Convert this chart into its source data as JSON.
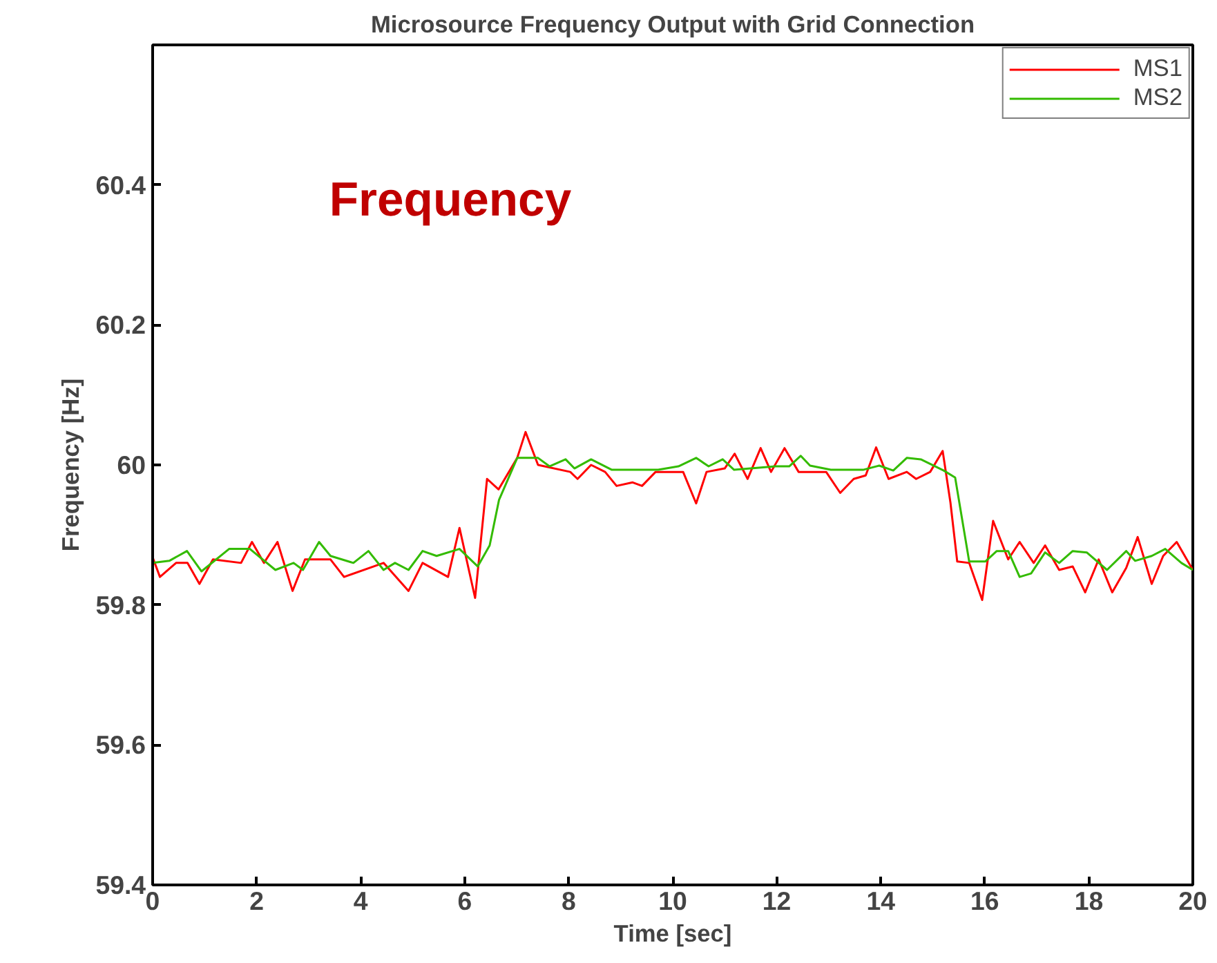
{
  "chart_data": {
    "type": "line",
    "title": "Microsource Frequency Output with Grid Connection",
    "xlabel": "Time [sec]",
    "ylabel": "Frequency [Hz]",
    "annotations": [
      "Frequency"
    ],
    "xlim": [
      0,
      20
    ],
    "ylim": [
      59.4,
      60.6
    ],
    "xticks": [
      0,
      2,
      4,
      6,
      8,
      10,
      12,
      14,
      16,
      18,
      20
    ],
    "yticks": [
      59.4,
      59.6,
      59.8,
      60,
      60.2,
      60.4
    ],
    "grid": false,
    "legend": "top right",
    "marker": "none",
    "line_style": "solid",
    "series": [
      {
        "name": "MS1",
        "color": "#ff0000",
        "x": [
          0,
          0.14,
          0.45,
          0.67,
          0.9,
          1.16,
          1.7,
          1.91,
          2.14,
          2.4,
          2.69,
          2.93,
          3.42,
          3.68,
          4.44,
          4.92,
          5.19,
          5.68,
          5.9,
          6.2,
          6.43,
          6.65,
          7.01,
          7.17,
          7.41,
          8.03,
          8.17,
          8.43,
          8.7,
          8.92,
          9.23,
          9.41,
          9.67,
          9.94,
          10.2,
          10.45,
          10.65,
          11.0,
          11.19,
          11.44,
          11.69,
          11.89,
          12.15,
          12.42,
          12.95,
          13.22,
          13.48,
          13.71,
          13.91,
          14.15,
          14.5,
          14.68,
          14.95,
          15.19,
          15.34,
          15.47,
          15.7,
          15.95,
          16.16,
          16.45,
          16.67,
          16.94,
          17.16,
          17.43,
          17.69,
          17.93,
          18.19,
          18.45,
          18.72,
          18.94,
          19.21,
          19.43,
          19.69,
          20
        ],
        "values": [
          59.868,
          59.84,
          59.86,
          59.86,
          59.83,
          59.865,
          59.86,
          59.89,
          59.86,
          59.89,
          59.82,
          59.865,
          59.865,
          59.84,
          59.86,
          59.82,
          59.86,
          59.84,
          59.91,
          59.81,
          59.98,
          59.965,
          60.01,
          60.047,
          60.0,
          59.99,
          59.98,
          60.0,
          59.99,
          59.97,
          59.975,
          59.97,
          59.99,
          59.99,
          59.99,
          59.945,
          59.99,
          59.995,
          60.016,
          59.98,
          60.024,
          59.99,
          60.024,
          59.99,
          59.99,
          59.96,
          59.98,
          59.985,
          60.025,
          59.98,
          59.99,
          59.98,
          59.99,
          60.02,
          59.946,
          59.862,
          59.86,
          59.807,
          59.92,
          59.865,
          59.89,
          59.86,
          59.885,
          59.85,
          59.855,
          59.818,
          59.865,
          59.818,
          59.853,
          59.897,
          59.83,
          59.87,
          59.89,
          59.85
        ]
      },
      {
        "name": "MS2",
        "color": "#33bb00",
        "x": [
          0,
          0.32,
          0.66,
          0.94,
          1.47,
          1.87,
          2.36,
          2.71,
          2.89,
          3.2,
          3.42,
          3.86,
          4.15,
          4.44,
          4.66,
          4.92,
          5.19,
          5.46,
          5.9,
          6.25,
          6.48,
          6.66,
          7.01,
          7.41,
          7.63,
          7.94,
          8.11,
          8.43,
          8.83,
          9.72,
          10.11,
          10.45,
          10.69,
          10.96,
          11.18,
          11.98,
          12.24,
          12.46,
          12.64,
          13.04,
          13.66,
          13.97,
          14.24,
          14.5,
          14.77,
          15.21,
          15.43,
          15.7,
          16.01,
          16.23,
          16.45,
          16.67,
          16.89,
          17.16,
          17.43,
          17.69,
          17.96,
          18.35,
          18.72,
          18.89,
          19.21,
          19.47,
          19.78,
          20
        ],
        "values": [
          59.86,
          59.863,
          59.877,
          59.848,
          59.88,
          59.88,
          59.85,
          59.86,
          59.85,
          59.89,
          59.87,
          59.86,
          59.877,
          59.85,
          59.86,
          59.85,
          59.877,
          59.87,
          59.88,
          59.855,
          59.885,
          59.95,
          60.01,
          60.01,
          59.998,
          60.008,
          59.995,
          60.008,
          59.993,
          59.993,
          59.998,
          60.01,
          59.998,
          60.008,
          59.993,
          59.998,
          59.998,
          60.013,
          59.999,
          59.993,
          59.993,
          59.999,
          59.992,
          60.01,
          60.008,
          59.992,
          59.982,
          59.862,
          59.862,
          59.877,
          59.877,
          59.84,
          59.845,
          59.875,
          59.86,
          59.877,
          59.875,
          59.85,
          59.877,
          59.863,
          59.87,
          59.88,
          59.86,
          59.85
        ]
      }
    ]
  }
}
